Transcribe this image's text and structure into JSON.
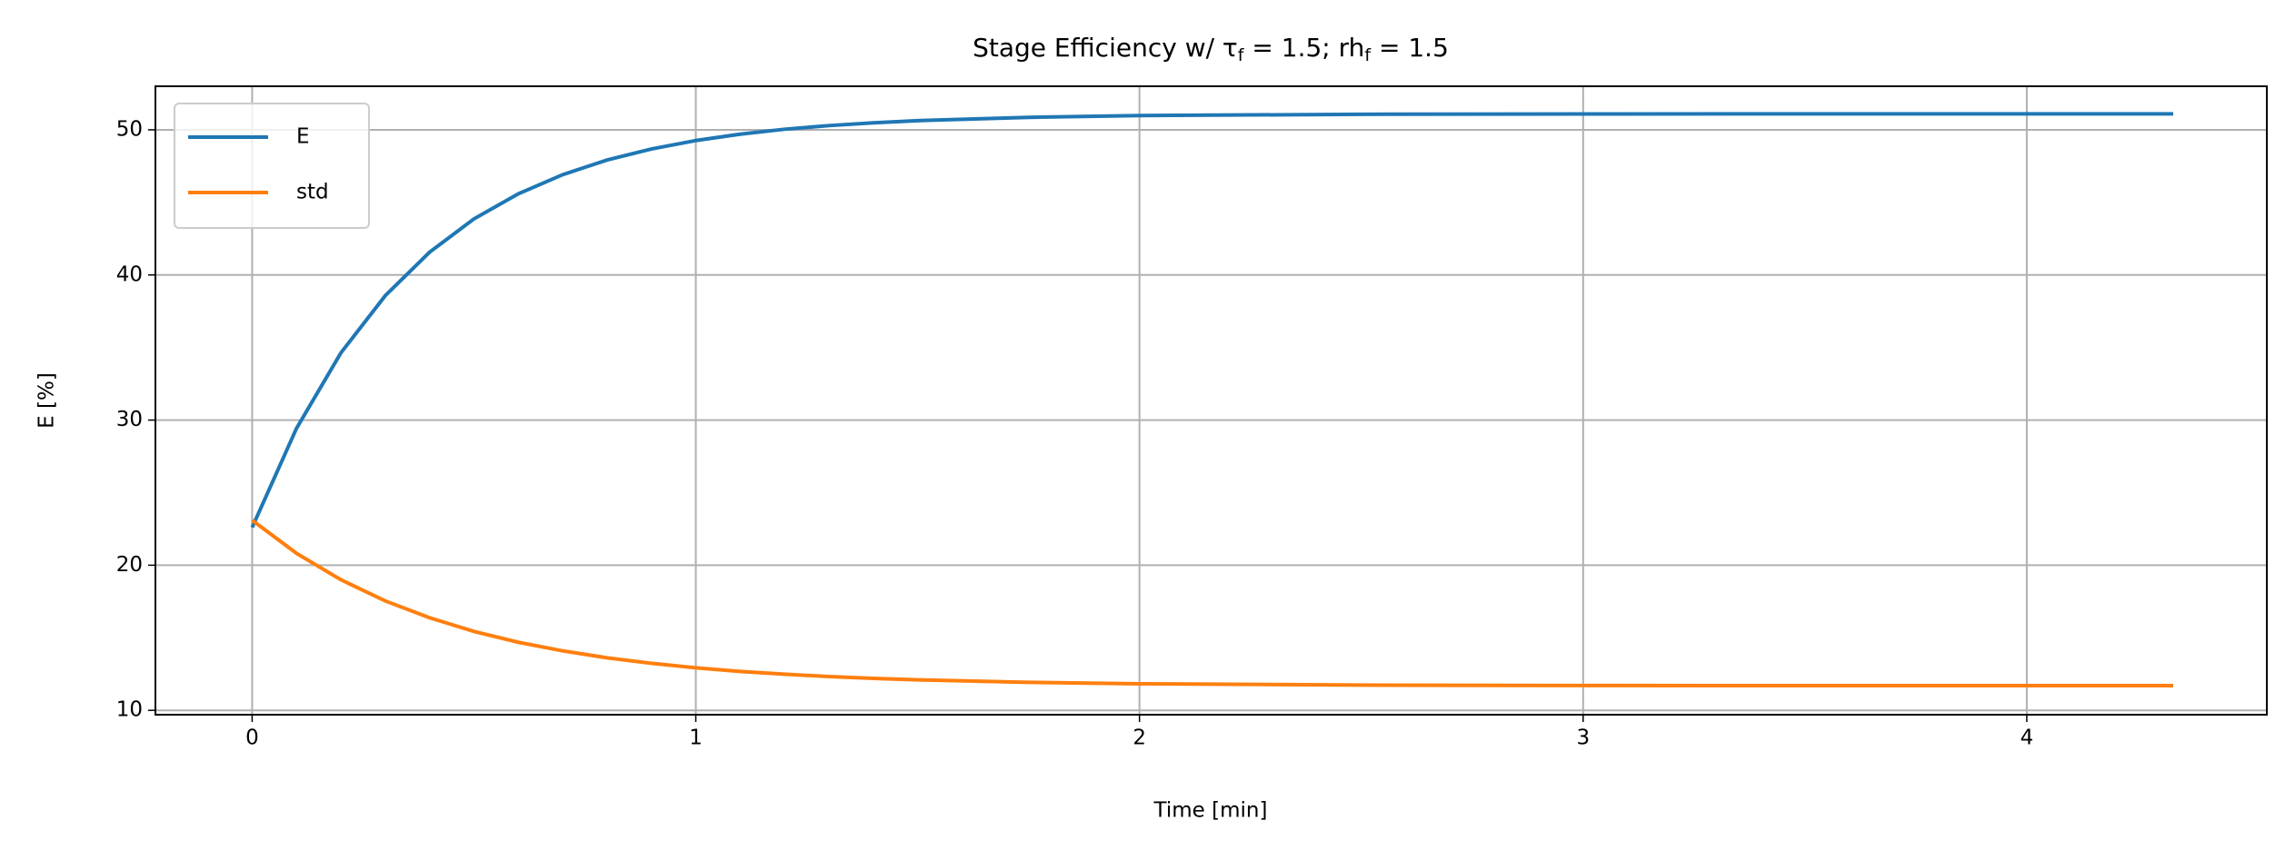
{
  "chart_data": {
    "type": "line",
    "title": [
      "Stage Efficiency w/ τ",
      "f",
      " = 1.5; rh",
      "f",
      " = 1.5"
    ],
    "x_label": "Time [min]",
    "y_label": "E [%]",
    "x": [
      0,
      0.1,
      0.2,
      0.3,
      0.4,
      0.5,
      0.6,
      0.7,
      0.8,
      0.9,
      1.0,
      1.1,
      1.2,
      1.3,
      1.4,
      1.5,
      1.75,
      2,
      2.5,
      3,
      3.5,
      4,
      4.33
    ],
    "series": [
      {
        "name": "E",
        "color": "#1f77b4",
        "values": [
          22.6,
          29.43,
          34.63,
          38.57,
          41.57,
          43.86,
          45.59,
          46.91,
          47.92,
          48.68,
          49.26,
          49.7,
          50.04,
          50.29,
          50.48,
          50.63,
          50.86,
          50.98,
          51.07,
          51.09,
          51.1,
          51.1,
          51.1
        ]
      },
      {
        "name": "std",
        "color": "#ff7f0e",
        "values": [
          23.1,
          20.82,
          19.0,
          17.54,
          16.38,
          15.44,
          14.69,
          14.1,
          13.62,
          13.24,
          12.93,
          12.68,
          12.49,
          12.33,
          12.2,
          12.1,
          11.93,
          11.83,
          11.74,
          11.71,
          11.7,
          11.7,
          11.7
        ]
      }
    ],
    "xlim": [
      -0.218,
      4.541
    ],
    "ylim": [
      9.7,
      53.0
    ],
    "xticks": [
      0,
      1,
      2,
      3,
      4
    ],
    "yticks": [
      10,
      20,
      30,
      40,
      50
    ],
    "grid": true,
    "legend": "upper left"
  }
}
